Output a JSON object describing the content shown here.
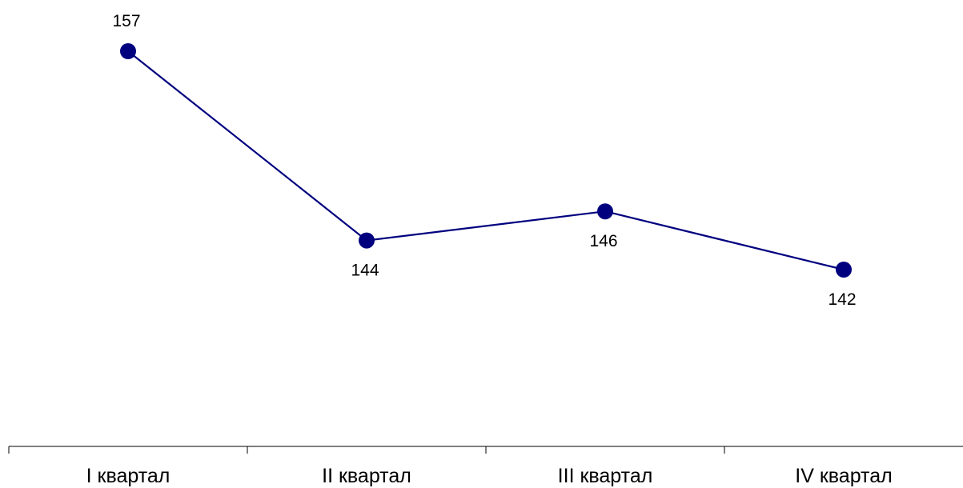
{
  "chart_data": {
    "type": "line",
    "categories": [
      "I квартал",
      "II квартал",
      "III квартал",
      "IV квартал"
    ],
    "series": [
      {
        "values": [
          157,
          144,
          146,
          142
        ],
        "color": "#00007f"
      }
    ],
    "title": "",
    "xlabel": "",
    "ylabel": "",
    "ylim": [
      120,
      160
    ],
    "grid": false,
    "legend": "none",
    "data_labels": true
  }
}
